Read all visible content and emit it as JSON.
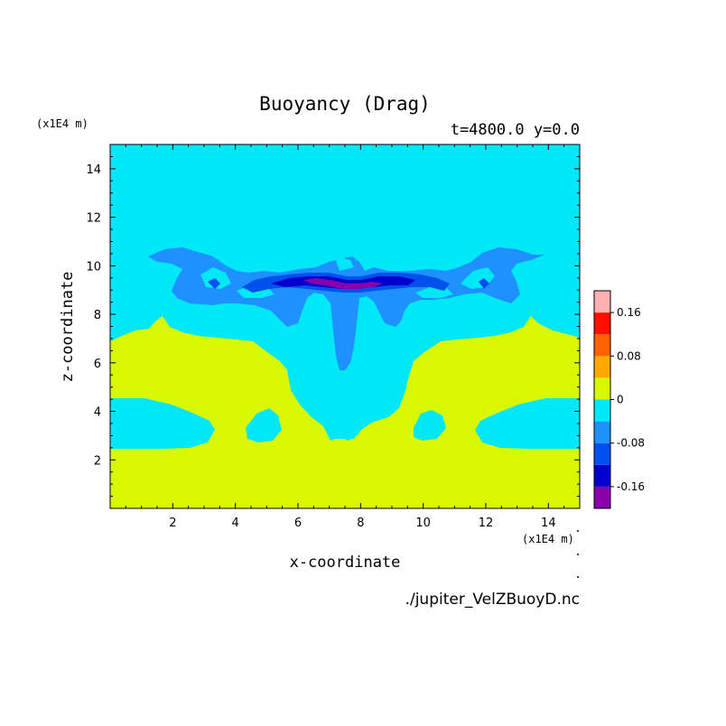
{
  "chart_data": {
    "type": "heatmap",
    "title": "Buoyancy (Drag)",
    "subtitle": "t=4800.0 y=0.0",
    "xlabel": "x-coordinate",
    "ylabel": "z-coordinate",
    "x_unit": "(x1E4 m)",
    "z_unit": "(x1E4 m)",
    "xlim": [
      0,
      15
    ],
    "ylim": [
      0,
      15
    ],
    "x_ticks": [
      2,
      4,
      6,
      8,
      10,
      12,
      14
    ],
    "y_ticks": [
      2,
      4,
      6,
      8,
      10,
      12,
      14
    ],
    "colorbar": {
      "levels": [
        -0.2,
        -0.16,
        -0.12,
        -0.08,
        -0.04,
        0,
        0.04,
        0.08,
        0.12,
        0.16,
        0.2
      ],
      "colors": [
        "#8800aa",
        "#0000cc",
        "#0050ee",
        "#1e90ff",
        "#00e8f8",
        "#d8f800",
        "#ffa800",
        "#ff6000",
        "#ff1000",
        "#ffb0b0"
      ],
      "tick_labels": [
        "-0.16",
        "-0.08",
        "0",
        "0.08",
        "0.16"
      ],
      "tick_values": [
        -0.16,
        -0.08,
        0,
        0.08,
        0.16
      ]
    },
    "fields": {
      "background_value": -0.02,
      "lower_layer_value": 0.02,
      "strong_negative_core_value": -0.18
    },
    "file_label": "./jupiter_VelZBuoyD.nc"
  }
}
